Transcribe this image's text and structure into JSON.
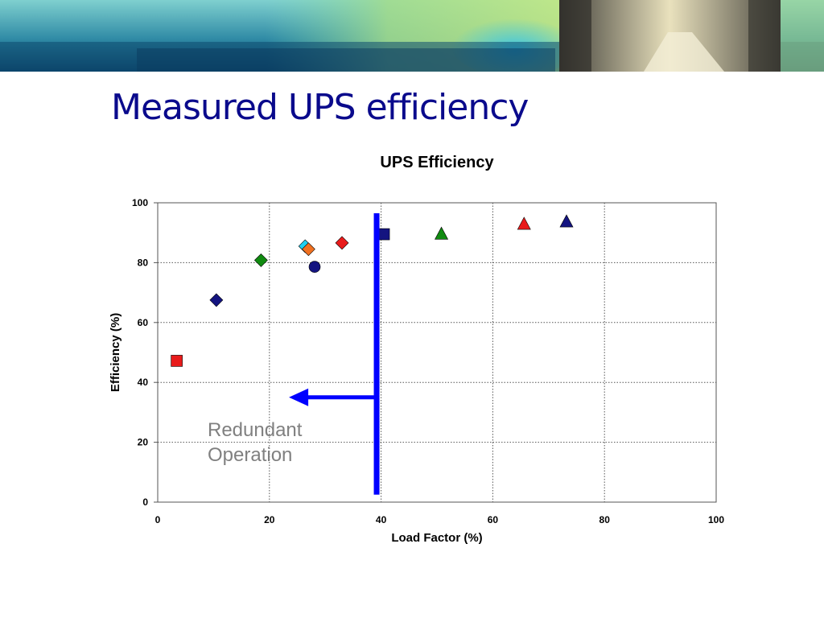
{
  "slide": {
    "title": "Measured UPS efficiency"
  },
  "colors": {
    "title": "#0a0a8c",
    "arrow": "#0000ff",
    "annotation_text": "#808080",
    "grid": "#555555"
  },
  "chart_data": {
    "type": "scatter",
    "title": "UPS Efficiency",
    "xlabel": "Load Factor (%)",
    "ylabel": "Efficiency (%)",
    "xlim": [
      0,
      100
    ],
    "ylim": [
      0,
      100
    ],
    "xticks": [
      0,
      20,
      40,
      60,
      80,
      100
    ],
    "yticks": [
      0,
      20,
      40,
      60,
      80,
      100
    ],
    "grid": true,
    "grid_style": "dotted",
    "points": [
      {
        "x": 3.4,
        "y": 47.2,
        "marker": "square",
        "color": "#e81b1b"
      },
      {
        "x": 10.5,
        "y": 67.5,
        "marker": "diamond",
        "color": "#141480"
      },
      {
        "x": 18.5,
        "y": 80.8,
        "marker": "diamond",
        "color": "#108a10"
      },
      {
        "x": 26.4,
        "y": 85.5,
        "marker": "diamond",
        "color": "#20d0f0"
      },
      {
        "x": 27.0,
        "y": 84.5,
        "marker": "diamond",
        "color": "#f07020"
      },
      {
        "x": 28.1,
        "y": 78.6,
        "marker": "circle",
        "color": "#141480"
      },
      {
        "x": 33.0,
        "y": 86.6,
        "marker": "diamond",
        "color": "#e81b1b"
      },
      {
        "x": 40.5,
        "y": 89.5,
        "marker": "square",
        "color": "#141480"
      },
      {
        "x": 50.8,
        "y": 89.7,
        "marker": "triangle",
        "color": "#108a10"
      },
      {
        "x": 65.6,
        "y": 93.0,
        "marker": "triangle",
        "color": "#e81b1b"
      },
      {
        "x": 73.2,
        "y": 93.8,
        "marker": "triangle",
        "color": "#141480"
      }
    ],
    "annotation": {
      "lines": [
        "Redundant",
        "Operation"
      ],
      "threshold_x": 39.2,
      "threshold_y_range": [
        2.5,
        96.5
      ],
      "arrow_y": 35,
      "arrow_to_x": 23.5
    }
  }
}
